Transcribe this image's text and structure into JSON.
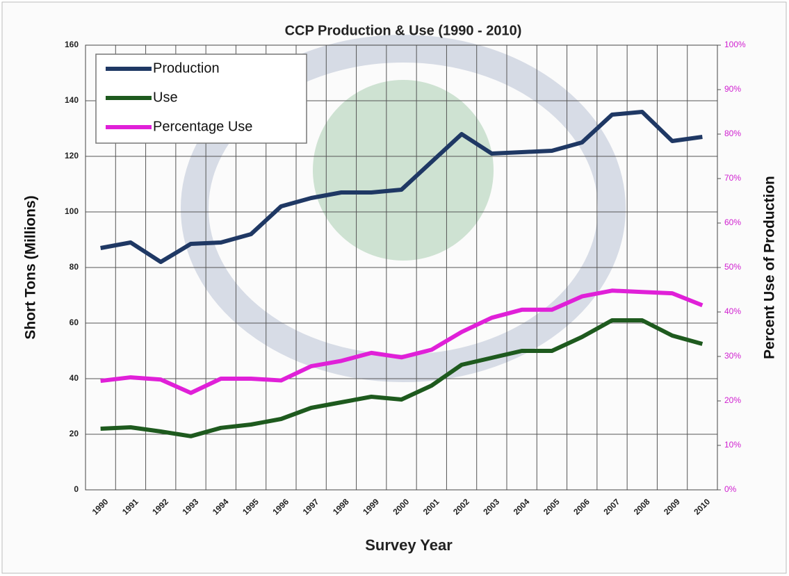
{
  "chart_data": {
    "type": "line",
    "title": "CCP Production & Use (1990 - 2010)",
    "x_label": "Survey Year",
    "y_label": "Short Tons (Millions)",
    "y2_label": "Percent Use of Production",
    "categories": [
      "1990",
      "1991",
      "1992",
      "1993",
      "1994",
      "1995",
      "1996",
      "1997",
      "1998",
      "1999",
      "2000",
      "2001",
      "2002",
      "2003",
      "2004",
      "2005",
      "2006",
      "2007",
      "2008",
      "2009",
      "2010"
    ],
    "series": [
      {
        "name": "Production",
        "color": "#1f3864",
        "values": [
          87,
          89,
          82,
          88.5,
          89,
          92,
          102,
          105,
          107,
          107,
          108,
          118,
          128,
          121,
          121.5,
          122,
          125,
          135,
          136,
          125.5,
          127
        ]
      },
      {
        "name": "Use",
        "color": "#1e5a1e",
        "values": [
          22,
          22.5,
          21,
          19.3,
          22.3,
          23.5,
          25.5,
          29.5,
          31.5,
          33.5,
          32.5,
          37.5,
          45,
          47.5,
          50,
          50,
          55,
          61,
          61,
          55.5,
          52.5
        ]
      },
      {
        "name": "Percentage Use",
        "color": "#e020d8",
        "axis": "y2",
        "values": [
          24.5,
          25.3,
          24.8,
          21.8,
          25,
          25,
          24.6,
          27.8,
          29,
          30.8,
          29.8,
          31.5,
          35.5,
          38.7,
          40.5,
          40.5,
          43.5,
          44.8,
          44.5,
          44.2,
          41.5
        ]
      }
    ],
    "ylim": [
      0,
      160
    ],
    "yticks": [
      0,
      20,
      40,
      60,
      80,
      100,
      120,
      140,
      160
    ],
    "y2lim": [
      0,
      100
    ],
    "y2ticks": [
      {
        "value": 0,
        "label": "0%"
      },
      {
        "value": 10,
        "label": "10%"
      },
      {
        "value": 20,
        "label": "20%"
      },
      {
        "value": 30,
        "label": "30%"
      },
      {
        "value": 40,
        "label": "40%"
      },
      {
        "value": 50,
        "label": "50%"
      },
      {
        "value": 60,
        "label": "60%"
      },
      {
        "value": 70,
        "label": "70%"
      },
      {
        "value": 80,
        "label": "80%"
      },
      {
        "value": 90,
        "label": "90%"
      },
      {
        "value": 100,
        "label": "100%"
      }
    ],
    "grid": true,
    "legend": "top-left"
  }
}
